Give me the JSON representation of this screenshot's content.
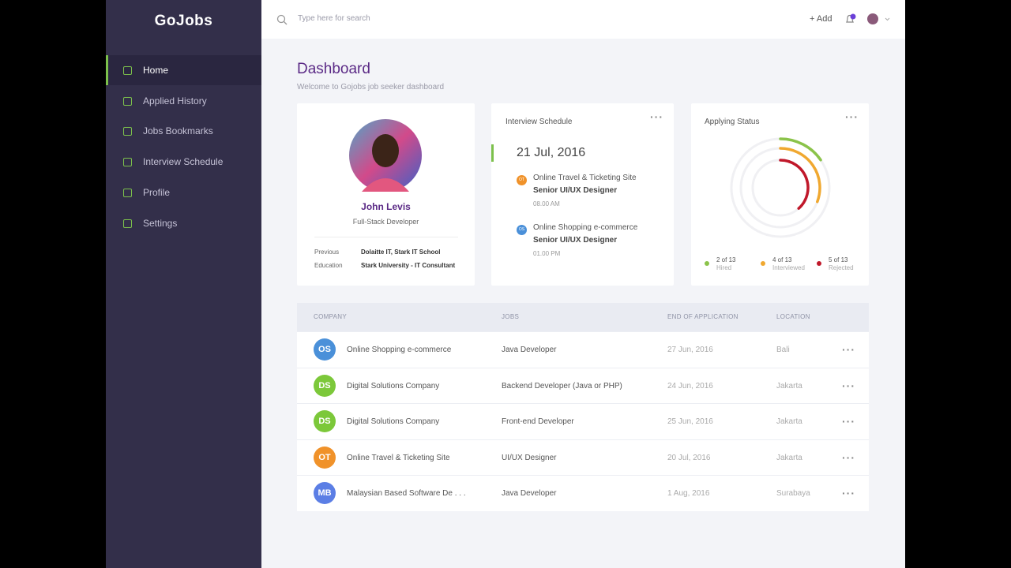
{
  "app": {
    "logo": "GoJobs",
    "search_placeholder": "Type here for search",
    "add_button": "+ Add",
    "nav": [
      "Home",
      "Applied History",
      "Jobs Bookmarks",
      "Interview Schedule",
      "Profile",
      "Settings"
    ]
  },
  "header": {
    "title": "Dashboard",
    "subtitle": "Welcome to Gojobs job seeker dashboard"
  },
  "profile": {
    "name": "John Levis",
    "role": "Full-Stack Developer",
    "details": [
      {
        "label": "Previous",
        "value": "Dolaitte IT, Stark IT School"
      },
      {
        "label": "Education",
        "value": "Stark University - IT Consultant"
      }
    ]
  },
  "interview": {
    "title": "Interview Schedule",
    "date": "21 Jul, 2016",
    "items": [
      {
        "initials": "OT",
        "color": "#f0922a",
        "company": "Online Travel & Ticketing Site",
        "position": "Senior UI/UX Designer",
        "time": "08.00 AM"
      },
      {
        "initials": "OS",
        "color": "#4a90d9",
        "company": "Online Shopping e-commerce",
        "position": "Senior UI/UX Designer",
        "time": "01.00 PM"
      }
    ]
  },
  "status": {
    "title": "Applying Status",
    "items": [
      {
        "value": 2,
        "total": 13,
        "value_label": "2 of 13",
        "caption": "Hired",
        "color": "#8bc34a"
      },
      {
        "value": 4,
        "total": 13,
        "value_label": "4 of 13",
        "caption": "Interviewed",
        "color": "#f0a830"
      },
      {
        "value": 5,
        "total": 13,
        "value_label": "5 of 13",
        "caption": "Rejected",
        "color": "#c0182a"
      }
    ]
  },
  "table": {
    "columns": [
      "COMPANY",
      "JOBS",
      "END OF APPLICATION",
      "LOCATION"
    ],
    "rows": [
      {
        "initials": "OS",
        "color": "#4a90d9",
        "company": "Online Shopping e-commerce",
        "job": "Java Developer",
        "end": "27 Jun, 2016",
        "location": "Bali"
      },
      {
        "initials": "DS",
        "color": "#7cc83a",
        "company": "Digital Solutions Company",
        "job": "Backend Developer (Java or PHP)",
        "end": "24 Jun, 2016",
        "location": "Jakarta"
      },
      {
        "initials": "DS",
        "color": "#7cc83a",
        "company": "Digital Solutions Company",
        "job": "Front-end Developer",
        "end": "25 Jun, 2016",
        "location": "Jakarta"
      },
      {
        "initials": "OT",
        "color": "#f0922a",
        "company": "Online Travel & Ticketing Site",
        "job": "UI/UX Designer",
        "end": "20 Jul, 2016",
        "location": "Jakarta"
      },
      {
        "initials": "MB",
        "color": "#5b7ee5",
        "company": "Malaysian Based Software De . . .",
        "job": "Java Developer",
        "end": "1 Aug, 2016",
        "location": "Surabaya"
      }
    ]
  }
}
